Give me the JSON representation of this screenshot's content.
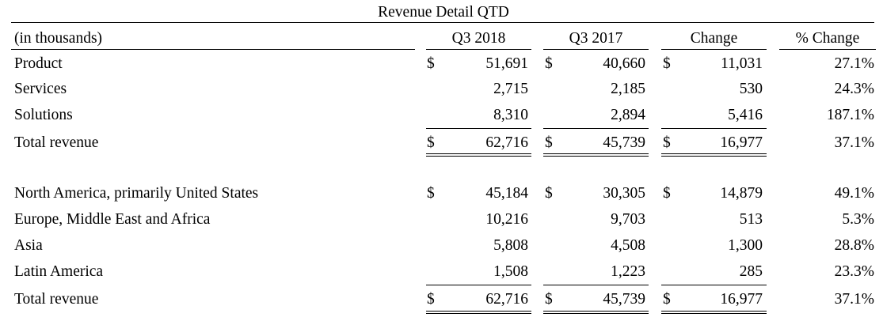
{
  "title": "Revenue Detail QTD",
  "headers": {
    "units": "(in thousands)",
    "col1": "Q3 2018",
    "col2": "Q3 2017",
    "col3": "Change",
    "col4": "% Change"
  },
  "currency_symbol": "$",
  "segments": [
    {
      "label": "Product",
      "q3_2018": "51,691",
      "q3_2017": "40,660",
      "change": "11,031",
      "pct": "27.1%"
    },
    {
      "label": "Services",
      "q3_2018": "2,715",
      "q3_2017": "2,185",
      "change": "530",
      "pct": "24.3%"
    },
    {
      "label": "Solutions",
      "q3_2018": "8,310",
      "q3_2017": "2,894",
      "change": "5,416",
      "pct": "187.1%"
    }
  ],
  "segments_total": {
    "label": "Total revenue",
    "q3_2018": "62,716",
    "q3_2017": "45,739",
    "change": "16,977",
    "pct": "37.1%"
  },
  "regions": [
    {
      "label": "North America, primarily United States",
      "q3_2018": "45,184",
      "q3_2017": "30,305",
      "change": "14,879",
      "pct": "49.1%"
    },
    {
      "label": "Europe, Middle East and Africa",
      "q3_2018": "10,216",
      "q3_2017": "9,703",
      "change": "513",
      "pct": "5.3%"
    },
    {
      "label": "Asia",
      "q3_2018": "5,808",
      "q3_2017": "4,508",
      "change": "1,300",
      "pct": "28.8%"
    },
    {
      "label": "Latin America",
      "q3_2018": "1,508",
      "q3_2017": "1,223",
      "change": "285",
      "pct": "23.3%"
    }
  ],
  "regions_total": {
    "label": "Total revenue",
    "q3_2018": "62,716",
    "q3_2017": "45,739",
    "change": "16,977",
    "pct": "37.1%"
  }
}
